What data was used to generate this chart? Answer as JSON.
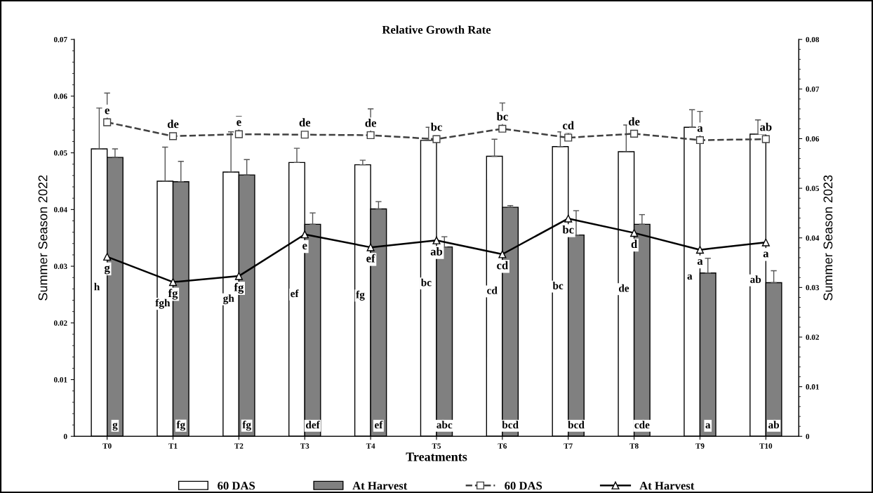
{
  "chart_data": {
    "type": "bar",
    "title": "Relative Growth Rate",
    "xlabel": "Treatments",
    "ylabel": "Summer Season 2022",
    "y2label": "Summer Season 2023",
    "categories": [
      "T0",
      "T1",
      "T2",
      "T3",
      "T4",
      "T5",
      "T6",
      "T7",
      "T8",
      "T9",
      "T10"
    ],
    "series": [
      {
        "name": "60 DAS",
        "color": "#ffffff",
        "values": [
          0.0507,
          0.045,
          0.0466,
          0.0483,
          0.0479,
          0.0522,
          0.0494,
          0.0511,
          0.0502,
          0.0545,
          0.0533
        ],
        "errors": [
          0.0072,
          0.006,
          0.0071,
          0.0025,
          0.0008,
          0.0023,
          0.003,
          0.0026,
          0.0047,
          0.0031,
          0.0025
        ],
        "value_labels": [
          "h",
          "fgh",
          "gh",
          "ef",
          "fg",
          "bc",
          "cd",
          "bc",
          "de",
          "a",
          "ab"
        ]
      },
      {
        "name": "At Harvest",
        "color": "#808080",
        "values": [
          0.0492,
          0.0449,
          0.0461,
          0.0374,
          0.0401,
          0.0334,
          0.0404,
          0.0355,
          0.0374,
          0.0288,
          0.0271
        ],
        "errors": [
          0.0015,
          0.0036,
          0.0027,
          0.002,
          0.0013,
          0.0018,
          0.0003,
          0.0043,
          0.0017,
          0.0026,
          0.0021
        ],
        "value_labels": [
          "g",
          "fg",
          "fg",
          "def",
          "ef",
          "abc",
          "bcd",
          "bcd",
          "cde",
          "a",
          "ab"
        ]
      },
      {
        "name": "60 DAS",
        "type": "line",
        "axis": "y2",
        "color": "#404040",
        "marker": "square",
        "line_style": "dashed",
        "values": [
          0.0633,
          0.0605,
          0.0609,
          0.0608,
          0.0607,
          0.0599,
          0.062,
          0.0602,
          0.061,
          0.0597,
          0.0599
        ],
        "errors": [
          0.0059,
          null,
          0.0036,
          null,
          0.0053,
          null,
          0.0052,
          0.001,
          null,
          0.0058,
          null
        ],
        "value_labels": [
          "e",
          "de",
          "e",
          "de",
          "de",
          "bc",
          "bc",
          "cd",
          "de",
          "a",
          "ab"
        ]
      },
      {
        "name": "At Harvest",
        "type": "line",
        "axis": "y2",
        "color": "#000000",
        "marker": "triangle",
        "line_style": "solid",
        "values": [
          0.0362,
          0.0311,
          0.0323,
          0.0407,
          0.0381,
          0.0395,
          0.0367,
          0.0439,
          0.041,
          0.0376,
          0.0391
        ],
        "value_labels": [
          "g",
          "fg",
          "fg",
          "e",
          "ef",
          "ab",
          "cd",
          "bc",
          "d",
          "a",
          "a"
        ]
      }
    ],
    "ylim": [
      0,
      0.07
    ],
    "yticks": [
      0,
      0.01,
      0.02,
      0.03,
      0.04,
      0.05,
      0.06,
      0.07
    ],
    "y2lim": [
      0,
      0.08
    ],
    "y2ticks": [
      0,
      0.01,
      0.02,
      0.03,
      0.04,
      0.05,
      0.06,
      0.07,
      0.08
    ],
    "legend": "bottom",
    "grid": false
  }
}
